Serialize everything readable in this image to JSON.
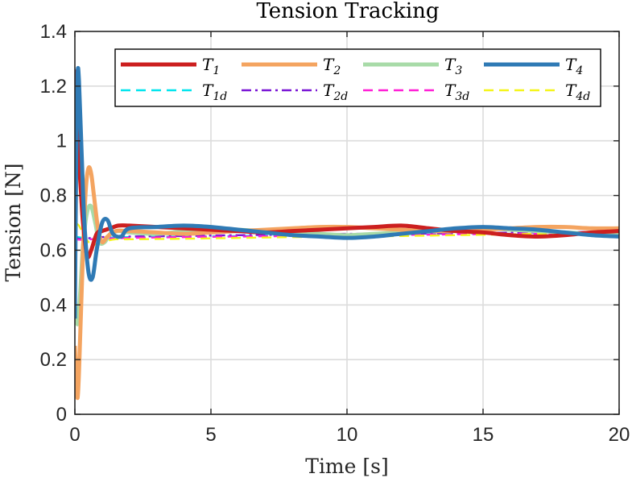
{
  "chart_data": {
    "type": "line",
    "title": "Tension Tracking",
    "xlabel": "Time [s]",
    "ylabel": "Tension [N]",
    "xlim": [
      0,
      20
    ],
    "ylim": [
      0,
      1.4
    ],
    "xticks": [
      0,
      5,
      10,
      15,
      20
    ],
    "xtick_labels": [
      "0",
      "5",
      "10",
      "15",
      "20"
    ],
    "yticks": [
      0,
      0.2,
      0.4,
      0.6,
      0.8,
      1,
      1.2,
      1.4
    ],
    "ytick_labels": [
      "0",
      "0.2",
      "0.4",
      "0.6",
      "0.8",
      "1",
      "1.2",
      "1.4"
    ],
    "grid": true,
    "legend_position": "top",
    "series": [
      {
        "name": "T1",
        "label_main": "T",
        "label_sub": "1",
        "color": "#cc1f1f",
        "style": "solid",
        "x": [
          0,
          0.05,
          0.1,
          0.2,
          0.3,
          0.45,
          0.6,
          0.8,
          1.0,
          1.3,
          1.6,
          2,
          3,
          4,
          5,
          6,
          7,
          8,
          9,
          10,
          11,
          12,
          13,
          14,
          15,
          16,
          17,
          18,
          19,
          20
        ],
        "y": [
          1.15,
          1.25,
          1.0,
          0.85,
          0.7,
          0.58,
          0.6,
          0.66,
          0.67,
          0.68,
          0.69,
          0.69,
          0.685,
          0.68,
          0.675,
          0.67,
          0.665,
          0.67,
          0.675,
          0.68,
          0.685,
          0.69,
          0.68,
          0.67,
          0.665,
          0.655,
          0.65,
          0.655,
          0.665,
          0.67
        ]
      },
      {
        "name": "T2",
        "label_main": "T",
        "label_sub": "2",
        "color": "#f4a460",
        "style": "solid",
        "x": [
          0,
          0.1,
          0.2,
          0.3,
          0.4,
          0.5,
          0.6,
          0.7,
          0.85,
          1.0,
          1.2,
          1.5,
          2,
          3,
          4,
          5,
          6,
          7,
          8,
          9,
          10,
          11,
          12,
          13,
          14,
          15,
          16,
          17,
          18,
          19,
          20
        ],
        "y": [
          0.25,
          0.06,
          0.3,
          0.6,
          0.82,
          0.9,
          0.88,
          0.8,
          0.68,
          0.63,
          0.65,
          0.67,
          0.67,
          0.665,
          0.66,
          0.665,
          0.67,
          0.675,
          0.68,
          0.685,
          0.685,
          0.68,
          0.675,
          0.67,
          0.67,
          0.675,
          0.68,
          0.685,
          0.685,
          0.68,
          0.68
        ]
      },
      {
        "name": "T3",
        "label_main": "T",
        "label_sub": "3",
        "color": "#a8dba8",
        "style": "solid",
        "x": [
          0,
          0.1,
          0.2,
          0.3,
          0.45,
          0.6,
          0.75,
          0.9,
          1.1,
          1.3,
          1.6,
          2,
          3,
          4,
          5,
          6,
          7,
          8,
          9,
          10,
          11,
          12,
          13,
          14,
          15,
          16,
          17,
          18,
          19,
          20
        ],
        "y": [
          0.4,
          0.33,
          0.45,
          0.62,
          0.74,
          0.76,
          0.7,
          0.63,
          0.63,
          0.66,
          0.67,
          0.665,
          0.66,
          0.67,
          0.68,
          0.675,
          0.67,
          0.665,
          0.66,
          0.655,
          0.66,
          0.665,
          0.67,
          0.675,
          0.68,
          0.675,
          0.67,
          0.665,
          0.66,
          0.66
        ]
      },
      {
        "name": "T4",
        "label_main": "T",
        "label_sub": "4",
        "color": "#2f7ab5",
        "style": "solid",
        "x": [
          0,
          0.05,
          0.1,
          0.15,
          0.25,
          0.35,
          0.5,
          0.65,
          0.8,
          1.0,
          1.2,
          1.4,
          1.7,
          2,
          3,
          4,
          5,
          6,
          7,
          8,
          9,
          10,
          11,
          12,
          13,
          14,
          15,
          16,
          17,
          18,
          19,
          20
        ],
        "y": [
          0.35,
          0.95,
          1.24,
          1.22,
          0.95,
          0.7,
          0.52,
          0.5,
          0.6,
          0.7,
          0.71,
          0.66,
          0.65,
          0.68,
          0.685,
          0.69,
          0.685,
          0.675,
          0.665,
          0.655,
          0.65,
          0.645,
          0.65,
          0.66,
          0.67,
          0.68,
          0.685,
          0.68,
          0.675,
          0.665,
          0.655,
          0.65
        ]
      },
      {
        "name": "T1d",
        "label_main": "T",
        "label_sub": "1d",
        "color": "#00e5ee",
        "style": "dashed",
        "x": [
          0,
          0.3,
          0.6,
          1,
          2,
          4,
          6,
          8,
          10,
          12,
          14,
          16,
          18,
          20
        ],
        "y": [
          0.65,
          0.645,
          0.64,
          0.645,
          0.648,
          0.65,
          0.652,
          0.655,
          0.657,
          0.658,
          0.66,
          0.66,
          0.662,
          0.665
        ]
      },
      {
        "name": "T2d",
        "label_main": "T",
        "label_sub": "2d",
        "color": "#7a16d6",
        "style": "dashdot",
        "x": [
          0,
          0.3,
          0.6,
          1,
          2,
          4,
          6,
          8,
          10,
          12,
          14,
          16,
          18,
          20
        ],
        "y": [
          0.645,
          0.64,
          0.645,
          0.648,
          0.65,
          0.652,
          0.655,
          0.657,
          0.66,
          0.66,
          0.662,
          0.664,
          0.666,
          0.668
        ]
      },
      {
        "name": "T3d",
        "label_main": "T",
        "label_sub": "3d",
        "color": "#ff1fd6",
        "style": "dashed",
        "x": [
          0,
          0.3,
          0.6,
          1,
          2,
          4,
          6,
          8,
          10,
          12,
          14,
          16,
          18,
          20
        ],
        "y": [
          0.64,
          0.638,
          0.64,
          0.642,
          0.645,
          0.648,
          0.65,
          0.652,
          0.654,
          0.656,
          0.658,
          0.66,
          0.662,
          0.664
        ]
      },
      {
        "name": "T4d",
        "label_main": "T",
        "label_sub": "4d",
        "color": "#f5f51a",
        "style": "dashed",
        "x": [
          0,
          0.15,
          0.3,
          0.5,
          0.7,
          1,
          1.5,
          2,
          4,
          6,
          8,
          10,
          12,
          14,
          16,
          18,
          20
        ],
        "y": [
          0.7,
          0.69,
          0.66,
          0.63,
          0.62,
          0.63,
          0.64,
          0.64,
          0.642,
          0.645,
          0.648,
          0.65,
          0.652,
          0.655,
          0.658,
          0.662,
          0.666
        ]
      }
    ]
  }
}
